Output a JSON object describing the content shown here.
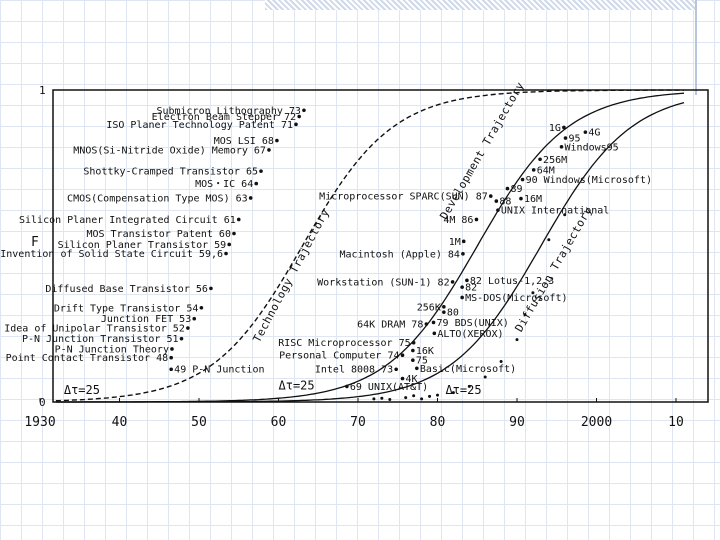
{
  "chart_data": {
    "type": "line",
    "ylabel": "F",
    "xlim": [
      1930,
      2010
    ],
    "ylim": [
      0,
      1
    ],
    "x_tick_labels": [
      "1930",
      "40",
      "50",
      "60",
      "70",
      "80",
      "90",
      "2000",
      "10"
    ],
    "x_tick_values": [
      1930,
      1940,
      1950,
      1960,
      1970,
      1980,
      1990,
      2000,
      2010
    ],
    "y_tick_labels": [
      "1",
      "0"
    ],
    "y_tick_values": [
      1,
      0
    ],
    "grid": false,
    "series": [
      {
        "name": "Technology Trajectory",
        "style": "dashed",
        "midpoint": 1963,
        "delta_tau": "Δτ=25"
      },
      {
        "name": "Development Trajectory",
        "style": "solid",
        "midpoint": 1985,
        "delta_tau": "Δτ=25"
      },
      {
        "name": "Diffusion Trajectory",
        "style": "solid",
        "midpoint": 1993,
        "delta_tau": "Δτ=25"
      }
    ],
    "trajectory_labels": [
      {
        "text": "Technology Trajectory",
        "x": 1962,
        "y": 0.4
      },
      {
        "text": "Development Trajectory",
        "x": 1986,
        "y": 0.8
      },
      {
        "text": "Diffusion Trajectory",
        "x": 1995,
        "y": 0.42
      }
    ],
    "delta_labels": [
      {
        "text": "Δτ=25",
        "x": 1933,
        "y": 0.025
      },
      {
        "text": "Δτ=25",
        "x": 1960,
        "y": 0.04
      },
      {
        "text": "Δτ=25",
        "x": 1981,
        "y": 0.025
      }
    ],
    "annotations": [
      {
        "text": "Submicron Lithography 73",
        "x": 1963.2,
        "y": 0.935,
        "side": "left"
      },
      {
        "text": "Electron Beam Stepper 72",
        "x": 1962.6,
        "y": 0.915,
        "side": "left"
      },
      {
        "text": "ISO Planer Technology Patent 71",
        "x": 1962.2,
        "y": 0.89,
        "side": "left"
      },
      {
        "text": "MOS LSI 68",
        "x": 1959.8,
        "y": 0.838,
        "side": "left"
      },
      {
        "text": "MNOS(Si-Nitride Oxide) Memory 67",
        "x": 1958.8,
        "y": 0.808,
        "side": "left"
      },
      {
        "text": "Shottky-Cramped Transistor 65",
        "x": 1957.8,
        "y": 0.74,
        "side": "left"
      },
      {
        "text": "MOS・IC 64",
        "x": 1957.2,
        "y": 0.7,
        "side": "left"
      },
      {
        "text": "CMOS(Compensation Type MOS) 63",
        "x": 1956.5,
        "y": 0.654,
        "side": "left"
      },
      {
        "text": "Silicon Planer Integrated Circuit 61",
        "x": 1955,
        "y": 0.585,
        "side": "left"
      },
      {
        "text": "MOS Transistor Patent 60",
        "x": 1954.4,
        "y": 0.54,
        "side": "left"
      },
      {
        "text": "Silicon Planer Transistor 59",
        "x": 1953.8,
        "y": 0.505,
        "side": "left"
      },
      {
        "text": "Invention of Solid State Circuit 59,6",
        "x": 1953.4,
        "y": 0.476,
        "side": "left"
      },
      {
        "text": "Diffused Base Transistor 56",
        "x": 1951.5,
        "y": 0.364,
        "side": "left"
      },
      {
        "text": "Drift Type Transistor 54",
        "x": 1950.3,
        "y": 0.302,
        "side": "left"
      },
      {
        "text": "Junction FET 53",
        "x": 1949.4,
        "y": 0.267,
        "side": "left"
      },
      {
        "text": "Idea of Unipolar Transistor 52",
        "x": 1948.6,
        "y": 0.237,
        "side": "left"
      },
      {
        "text": "P-N Junction Transistor 51",
        "x": 1947.8,
        "y": 0.203,
        "side": "left"
      },
      {
        "text": "P-N Junction Theory",
        "x": 1946.6,
        "y": 0.17,
        "side": "left"
      },
      {
        "text": "Point Contact Transistor 48",
        "x": 1946.5,
        "y": 0.142,
        "side": "left"
      },
      {
        "text": "49 P-N Junction",
        "x": 1946.5,
        "y": 0.105,
        "side": "right"
      },
      {
        "text": "Microprocessor SPARC(SUN) 87",
        "x": 1986.7,
        "y": 0.66,
        "side": "left"
      },
      {
        "text": "4M 86",
        "x": 1984.9,
        "y": 0.585,
        "side": "left"
      },
      {
        "text": "1M",
        "x": 1983.3,
        "y": 0.515,
        "side": "left"
      },
      {
        "text": "Macintosh (Apple) 84",
        "x": 1983.2,
        "y": 0.475,
        "side": "left"
      },
      {
        "text": "Workstation (SUN-1) 82",
        "x": 1981.9,
        "y": 0.385,
        "side": "left"
      },
      {
        "text": "256K",
        "x": 1980.8,
        "y": 0.305,
        "side": "left"
      },
      {
        "text": "64K DRAM 78",
        "x": 1978.6,
        "y": 0.25,
        "side": "left"
      },
      {
        "text": "RISC Microprocessor 75",
        "x": 1977,
        "y": 0.19,
        "side": "left"
      },
      {
        "text": "Personal Computer 74",
        "x": 1975.6,
        "y": 0.15,
        "side": "left"
      },
      {
        "text": "Intel 8008 73",
        "x": 1974.8,
        "y": 0.105,
        "side": "left"
      },
      {
        "text": "1G",
        "x": 1995.9,
        "y": 0.88,
        "side": "left"
      },
      {
        "text": "4G",
        "x": 1998.6,
        "y": 0.865,
        "side": "right"
      },
      {
        "text": "95",
        "x": 1996.1,
        "y": 0.846,
        "side": "right"
      },
      {
        "text": "Windows95",
        "x": 1995.6,
        "y": 0.818,
        "side": "right"
      },
      {
        "text": "256M",
        "x": 1992.9,
        "y": 0.778,
        "side": "right"
      },
      {
        "text": "64M",
        "x": 1992.1,
        "y": 0.744,
        "side": "right"
      },
      {
        "text": "90 Windows(Microsoft)",
        "x": 1990.7,
        "y": 0.713,
        "side": "right"
      },
      {
        "text": "89",
        "x": 1988.8,
        "y": 0.684,
        "side": "right"
      },
      {
        "text": "16M",
        "x": 1990.5,
        "y": 0.652,
        "side": "right"
      },
      {
        "text": "88",
        "x": 1987.4,
        "y": 0.644,
        "side": "right"
      },
      {
        "text": "UNIX International",
        "x": 1987.6,
        "y": 0.615,
        "side": "right"
      },
      {
        "text": "82 Lotus-1,2,3",
        "x": 1983.7,
        "y": 0.39,
        "side": "right"
      },
      {
        "text": "82",
        "x": 1983.1,
        "y": 0.368,
        "side": "right"
      },
      {
        "text": "MS-DOS(Microsoft)",
        "x": 1983.1,
        "y": 0.335,
        "side": "right"
      },
      {
        "text": "80",
        "x": 1980.8,
        "y": 0.288,
        "side": "right"
      },
      {
        "text": "79 BDS(UNIX)",
        "x": 1979.5,
        "y": 0.255,
        "side": "right"
      },
      {
        "text": "ALTO(XEROX)",
        "x": 1979.6,
        "y": 0.22,
        "side": "right"
      },
      {
        "text": "16K",
        "x": 1976.9,
        "y": 0.165,
        "side": "right"
      },
      {
        "text": "75",
        "x": 1976.9,
        "y": 0.134,
        "side": "right"
      },
      {
        "text": "Basic(Microsoft)",
        "x": 1977.4,
        "y": 0.108,
        "side": "right"
      },
      {
        "text": "4K",
        "x": 1975.6,
        "y": 0.075,
        "side": "right"
      },
      {
        "text": "69 UNIX(AT&T)",
        "x": 1968.6,
        "y": 0.05,
        "side": "right"
      }
    ]
  }
}
